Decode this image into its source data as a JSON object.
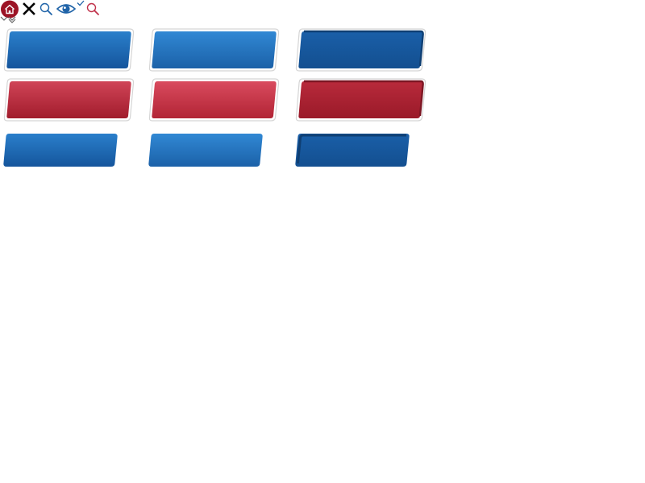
{
  "colors": {
    "blue_top": "#2a7fcb",
    "blue_bottom": "#15559c",
    "blue_hover_top": "#3188d4",
    "blue_dark": "#0f3f73",
    "red_top": "#d04457",
    "red_bottom": "#a11c2c",
    "red_hover_top": "#d94b5e",
    "red_dark": "#7c1623",
    "home_badge": "#9c1426",
    "search_blue": "#1f63a8",
    "search_red": "#c0314a",
    "eye_blue": "#1f63a8",
    "close_black": "#000000"
  },
  "icons": [
    "home-icon",
    "close-icon",
    "search-icon",
    "eye-icon",
    "check-icon",
    "search-icon-red",
    "chevron-down-icon"
  ],
  "buttons": {
    "large_blue": [
      "normal",
      "hover",
      "pressed"
    ],
    "large_red": [
      "normal",
      "hover",
      "pressed"
    ],
    "small_blue": [
      "normal",
      "hover",
      "pressed"
    ]
  }
}
